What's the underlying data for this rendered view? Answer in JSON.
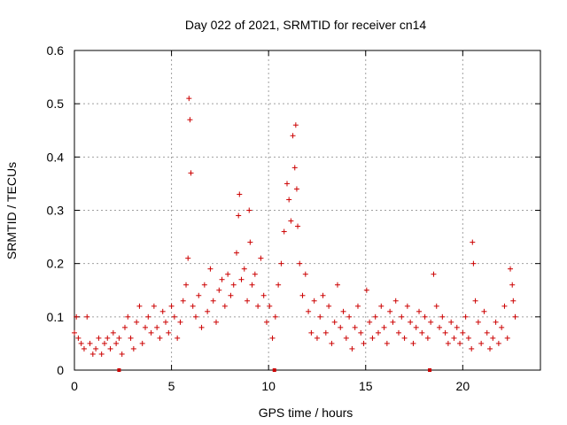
{
  "chart_data": {
    "type": "scatter",
    "title": "Day 022 of 2021, SRMTID for receiver cn14",
    "xlabel": "GPS time / hours",
    "ylabel": "SRMTID / TECUs",
    "xlim": [
      0,
      24
    ],
    "ylim": [
      0,
      0.6
    ],
    "xticks": [
      0,
      5,
      10,
      15,
      20
    ],
    "yticks": [
      0,
      0.1,
      0.2,
      0.3,
      0.4,
      0.5,
      0.6
    ],
    "grid": true,
    "marker": "+",
    "color": "#cc0000",
    "series": [
      {
        "name": "SRMTID",
        "x": [
          0.0,
          0.1,
          0.2,
          0.35,
          0.5,
          0.65,
          0.8,
          0.95,
          1.1,
          1.25,
          1.4,
          1.55,
          1.7,
          1.85,
          2.0,
          2.15,
          2.3,
          2.45,
          2.6,
          2.75,
          2.9,
          3.05,
          3.2,
          3.35,
          3.5,
          3.65,
          3.8,
          3.95,
          4.1,
          4.25,
          4.4,
          4.55,
          4.7,
          4.85,
          5.0,
          5.15,
          5.3,
          5.45,
          5.6,
          5.75,
          5.85,
          5.9,
          5.95,
          6.0,
          6.1,
          6.25,
          6.4,
          6.55,
          6.7,
          6.85,
          7.0,
          7.15,
          7.3,
          7.45,
          7.6,
          7.75,
          7.9,
          8.05,
          8.2,
          8.35,
          8.45,
          8.5,
          8.6,
          8.75,
          8.9,
          9.0,
          9.05,
          9.15,
          9.3,
          9.45,
          9.6,
          9.75,
          9.9,
          10.05,
          10.2,
          10.35,
          10.5,
          10.65,
          10.8,
          10.95,
          11.05,
          11.15,
          11.25,
          11.35,
          11.4,
          11.45,
          11.5,
          11.6,
          11.75,
          11.9,
          12.05,
          12.2,
          12.35,
          12.5,
          12.65,
          12.8,
          12.95,
          13.1,
          13.25,
          13.4,
          13.55,
          13.7,
          13.85,
          14.0,
          14.15,
          14.3,
          14.45,
          14.6,
          14.75,
          14.9,
          15.05,
          15.2,
          15.35,
          15.5,
          15.65,
          15.8,
          15.95,
          16.1,
          16.25,
          16.4,
          16.55,
          16.7,
          16.85,
          17.0,
          17.15,
          17.3,
          17.45,
          17.6,
          17.75,
          17.9,
          18.05,
          18.2,
          18.35,
          18.5,
          18.65,
          18.8,
          18.95,
          19.1,
          19.25,
          19.4,
          19.55,
          19.7,
          19.85,
          20.0,
          20.15,
          20.3,
          20.45,
          20.5,
          20.55,
          20.65,
          20.8,
          20.95,
          21.1,
          21.25,
          21.4,
          21.55,
          21.7,
          21.85,
          22.0,
          22.15,
          22.3,
          22.45,
          22.55,
          22.6,
          22.7
        ],
        "y": [
          0.07,
          0.1,
          0.06,
          0.05,
          0.04,
          0.1,
          0.05,
          0.03,
          0.04,
          0.06,
          0.03,
          0.05,
          0.06,
          0.04,
          0.07,
          0.05,
          0.06,
          0.03,
          0.08,
          0.1,
          0.06,
          0.04,
          0.09,
          0.12,
          0.05,
          0.08,
          0.1,
          0.07,
          0.12,
          0.08,
          0.06,
          0.11,
          0.09,
          0.07,
          0.12,
          0.1,
          0.06,
          0.09,
          0.13,
          0.16,
          0.21,
          0.51,
          0.47,
          0.37,
          0.12,
          0.1,
          0.14,
          0.08,
          0.16,
          0.11,
          0.19,
          0.13,
          0.09,
          0.15,
          0.17,
          0.12,
          0.18,
          0.14,
          0.16,
          0.22,
          0.29,
          0.33,
          0.17,
          0.19,
          0.13,
          0.3,
          0.24,
          0.16,
          0.18,
          0.12,
          0.21,
          0.14,
          0.09,
          0.12,
          0.06,
          0.1,
          0.16,
          0.2,
          0.26,
          0.35,
          0.32,
          0.28,
          0.44,
          0.38,
          0.46,
          0.34,
          0.27,
          0.2,
          0.14,
          0.18,
          0.11,
          0.07,
          0.13,
          0.06,
          0.1,
          0.14,
          0.07,
          0.12,
          0.05,
          0.09,
          0.16,
          0.08,
          0.11,
          0.06,
          0.1,
          0.04,
          0.08,
          0.12,
          0.07,
          0.05,
          0.15,
          0.09,
          0.06,
          0.1,
          0.07,
          0.12,
          0.08,
          0.05,
          0.11,
          0.09,
          0.13,
          0.07,
          0.1,
          0.06,
          0.12,
          0.09,
          0.05,
          0.08,
          0.11,
          0.07,
          0.1,
          0.06,
          0.09,
          0.18,
          0.12,
          0.08,
          0.1,
          0.07,
          0.05,
          0.09,
          0.06,
          0.08,
          0.05,
          0.07,
          0.1,
          0.06,
          0.04,
          0.24,
          0.2,
          0.13,
          0.09,
          0.05,
          0.11,
          0.07,
          0.04,
          0.06,
          0.09,
          0.05,
          0.08,
          0.12,
          0.06,
          0.19,
          0.16,
          0.13,
          0.1
        ]
      }
    ],
    "gap_markers_x": [
      2.3,
      10.3,
      18.3
    ]
  }
}
